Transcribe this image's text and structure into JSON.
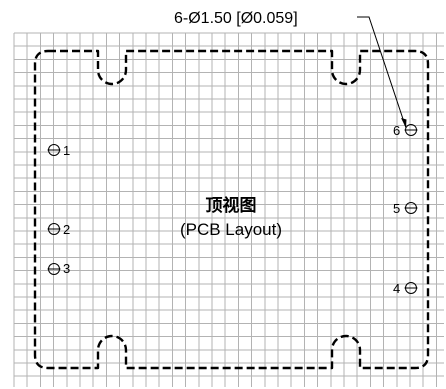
{
  "dimension": {
    "text": "6-Ø1.50 [Ø0.059]"
  },
  "title": {
    "cn": "顶视图",
    "en": "(PCB Layout)"
  },
  "pins": [
    {
      "label": "1"
    },
    {
      "label": "2"
    },
    {
      "label": "3"
    },
    {
      "label": "4"
    },
    {
      "label": "5"
    },
    {
      "label": "6"
    }
  ],
  "colors": {
    "grid": "#b3b3b3",
    "outline": "#000000"
  }
}
